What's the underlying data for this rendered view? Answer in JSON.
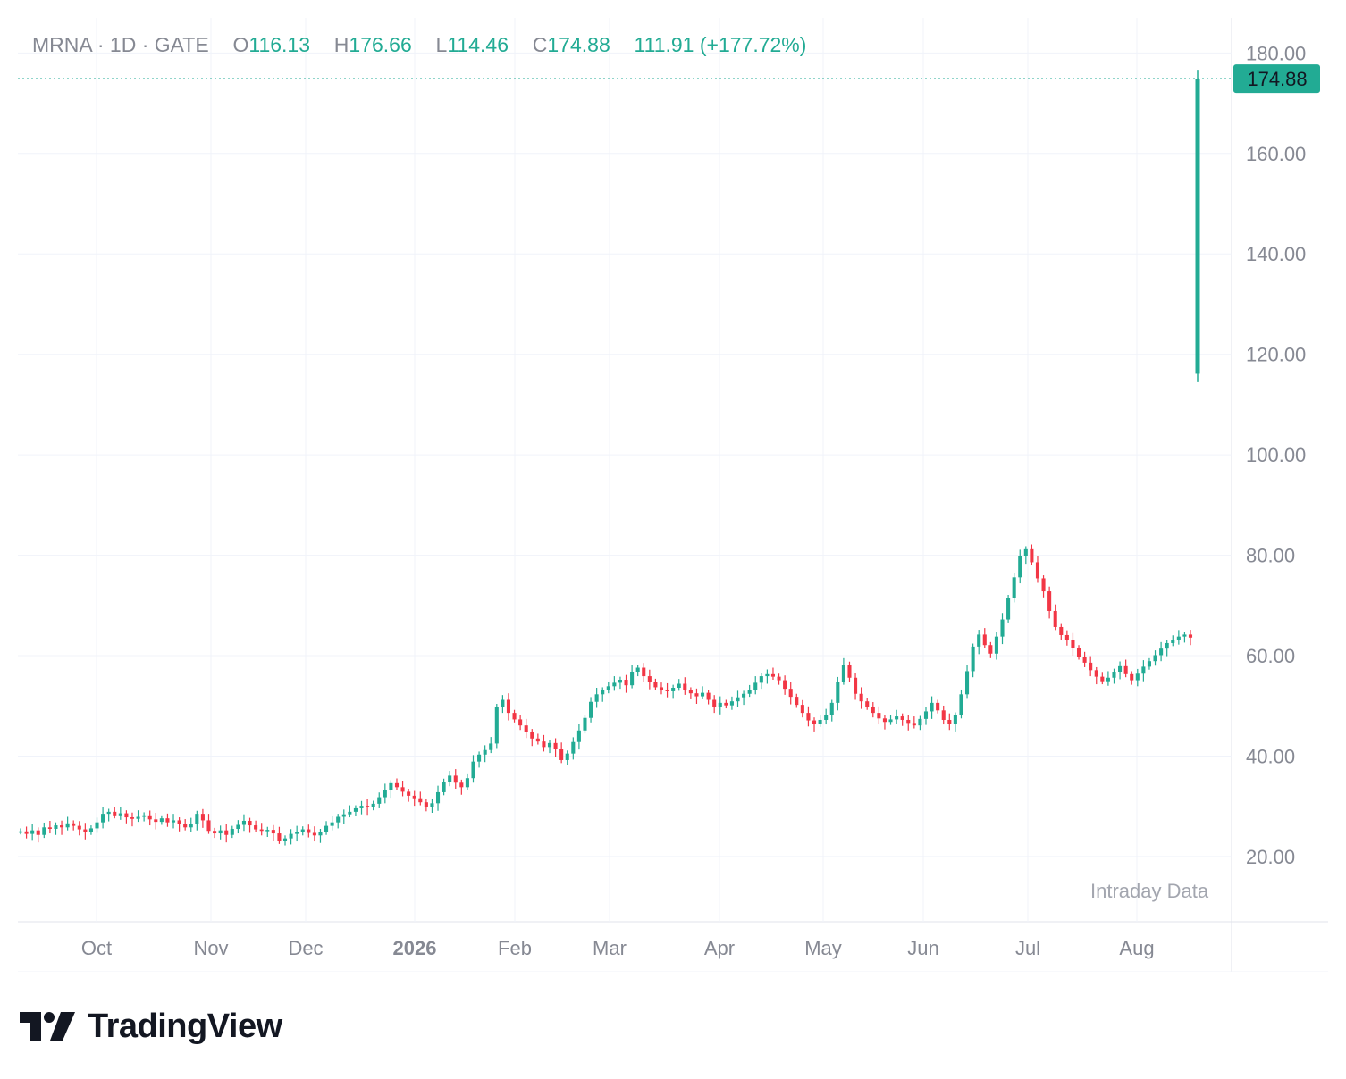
{
  "legend": {
    "symbol": "MRNA",
    "sep": "·",
    "interval": "1D",
    "exchange": "GATE",
    "o_label": "O",
    "o_value": "116.13",
    "h_label": "H",
    "h_value": "176.66",
    "l_label": "L",
    "l_value": "114.46",
    "c_label": "C",
    "c_value": "174.88",
    "change": "111.91 (+177.72%)"
  },
  "watermark": "Intraday Data",
  "brand": {
    "name": "TradingView",
    "logo_icon": "tradingview-logo-icon"
  },
  "colors": {
    "up": "#22ab94",
    "down": "#f23645",
    "price_label_bg": "#22ab94",
    "grid": "#f0f3fa",
    "axis_text": "#868993"
  },
  "chart_data": {
    "type": "candlestick",
    "symbol": "MRNA",
    "interval": "1D",
    "ylim": [
      7,
      187
    ],
    "y_ticks": [
      "20.00",
      "40.00",
      "60.00",
      "80.00",
      "100.00",
      "120.00",
      "140.00",
      "160.00",
      "180.00"
    ],
    "x_ticks": [
      {
        "label": "Oct",
        "bold": false
      },
      {
        "label": "Nov",
        "bold": false
      },
      {
        "label": "Dec",
        "bold": false
      },
      {
        "label": "2026",
        "bold": true
      },
      {
        "label": "Feb",
        "bold": false
      },
      {
        "label": "Mar",
        "bold": false
      },
      {
        "label": "Apr",
        "bold": false
      },
      {
        "label": "May",
        "bold": false
      },
      {
        "label": "Jun",
        "bold": false
      },
      {
        "label": "Jul",
        "bold": false
      },
      {
        "label": "Aug",
        "bold": false
      }
    ],
    "last_price": "174.88",
    "last_price_value": 174.88,
    "close_series": [
      25,
      24.5,
      25.2,
      24.3,
      25.8,
      25.5,
      26.2,
      25.8,
      26.6,
      26.1,
      25.4,
      24.9,
      25.6,
      26.8,
      28.5,
      28.9,
      28.2,
      28.6,
      27.8,
      27.5,
      27.9,
      28.2,
      27.4,
      26.9,
      27.6,
      26.8,
      27.2,
      26.5,
      25.8,
      26.4,
      28.5,
      27.2,
      25.1,
      24.6,
      25.2,
      24.3,
      25.5,
      26.3,
      27.1,
      26.2,
      25.4,
      25.1,
      25.3,
      24.6,
      23.1,
      23.6,
      24.5,
      24.8,
      25.4,
      24.7,
      24.2,
      24.9,
      26.1,
      26.8,
      27.9,
      28.4,
      28.9,
      29.6,
      30.1,
      29.8,
      30.5,
      31.8,
      33.2,
      34.6,
      33.8,
      32.9,
      32.1,
      31.6,
      30.8,
      29.9,
      30.6,
      32.8,
      34.9,
      36.1,
      34.7,
      33.8,
      35.6,
      38.9,
      40.3,
      41.2,
      42.5,
      49.8,
      51.2,
      48.6,
      47.3,
      46.1,
      44.8,
      43.5,
      42.9,
      41.8,
      42.6,
      41.4,
      39.2,
      40.5,
      42.8,
      45.1,
      47.6,
      50.8,
      52.3,
      53.1,
      53.9,
      54.6,
      55.2,
      54.1,
      56.8,
      57.6,
      55.9,
      54.8,
      53.7,
      53.2,
      52.9,
      53.6,
      54.4,
      53.1,
      52.5,
      51.9,
      52.6,
      51.2,
      49.8,
      50.6,
      50.1,
      50.9,
      51.7,
      52.4,
      53.2,
      54.6,
      55.9,
      56.3,
      55.8,
      55.1,
      53.4,
      51.8,
      50.2,
      48.6,
      47.1,
      46.4,
      47.2,
      48.1,
      50.6,
      54.8,
      58.2,
      55.6,
      52.4,
      50.9,
      49.8,
      48.6,
      47.5,
      46.8,
      47.3,
      47.9,
      47.2,
      46.6,
      46.1,
      47.4,
      48.9,
      50.6,
      49.1,
      47.2,
      46.4,
      48.1,
      52.3,
      56.9,
      61.8,
      64.2,
      62.1,
      60.4,
      63.8,
      67.2,
      71.5,
      75.6,
      79.8,
      81.2,
      78.6,
      75.4,
      72.8,
      68.9,
      65.7,
      64.1,
      63.2,
      61.5,
      59.8,
      58.6,
      57.1,
      55.8,
      54.9,
      55.6,
      56.8,
      57.9,
      56.3,
      55.1,
      56.4,
      57.8,
      58.9,
      60.1,
      61.4,
      62.5,
      63.1,
      63.8,
      64.2,
      63.6
    ],
    "big_candle": {
      "open": 116.13,
      "high": 176.66,
      "low": 114.46,
      "close": 174.88
    }
  }
}
